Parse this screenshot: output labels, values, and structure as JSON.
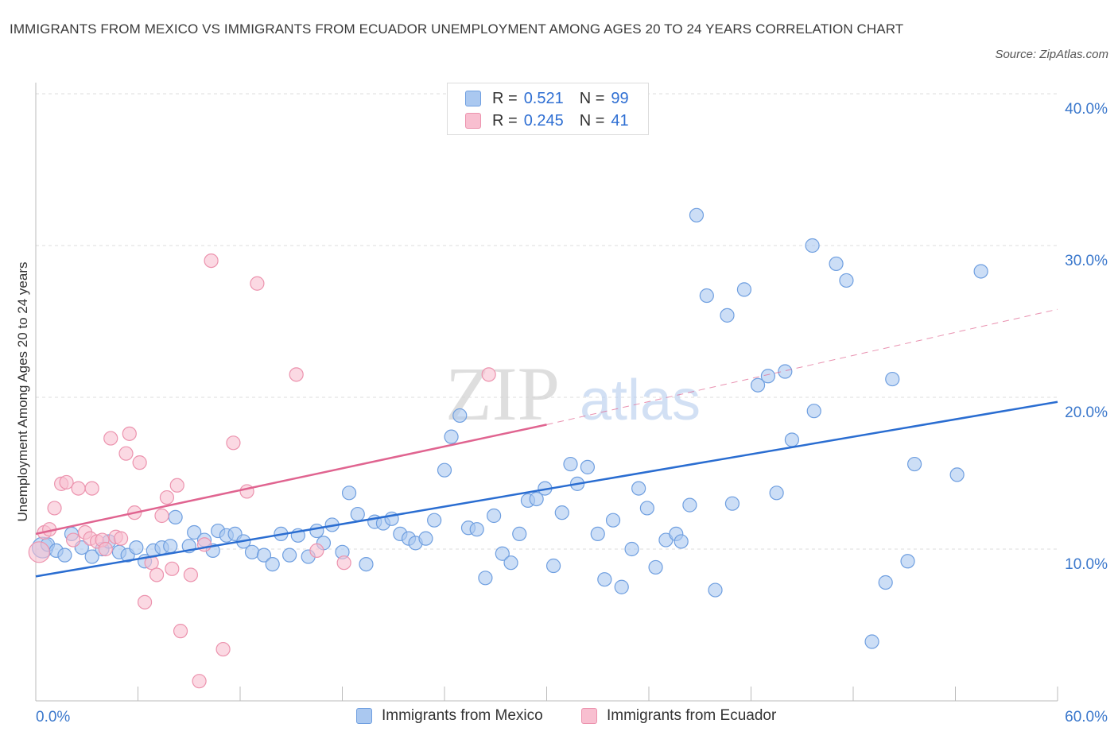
{
  "title": "IMMIGRANTS FROM MEXICO VS IMMIGRANTS FROM ECUADOR UNEMPLOYMENT AMONG AGES 20 TO 24 YEARS CORRELATION CHART",
  "source": "Source: ZipAtlas.com",
  "watermark": {
    "zip": "ZIP",
    "atlas": "atlas"
  },
  "legend": {
    "mexico": {
      "r_label": "R =",
      "r_value": "0.521",
      "n_label": "N =",
      "n_value": "99"
    },
    "ecuador": {
      "r_label": "R =",
      "r_value": "0.245",
      "n_label": "N =",
      "n_value": "41"
    }
  },
  "colors": {
    "mexico_fill": "#aac8f0",
    "mexico_stroke": "#6f9fe0",
    "mexico_line": "#2a6dd1",
    "ecuador_fill": "#f8bfd0",
    "ecuador_stroke": "#ec93ae",
    "ecuador_line": "#e06490",
    "axis_text": "#3b78cc",
    "grid": "#dddddd"
  },
  "chart_data": {
    "type": "scatter",
    "title": "IMMIGRANTS FROM MEXICO VS IMMIGRANTS FROM ECUADOR UNEMPLOYMENT AMONG AGES 20 TO 24 YEARS CORRELATION CHART",
    "xlabel": "",
    "ylabel": "Unemployment Among Ages 20 to 24 years",
    "xlim": [
      0,
      60
    ],
    "ylim": [
      0,
      40
    ],
    "x_tick_labels": [
      "0.0%",
      "60.0%"
    ],
    "y_ticks": [
      {
        "value": 10,
        "label": "10.0%"
      },
      {
        "value": 20,
        "label": "20.0%"
      },
      {
        "value": 30,
        "label": "30.0%"
      },
      {
        "value": 40,
        "label": "40.0%"
      }
    ],
    "grid": true,
    "legend_position": "top-center",
    "series": [
      {
        "name": "Immigrants from Mexico",
        "r": 0.521,
        "n": 99,
        "trend": {
          "x": [
            0,
            60
          ],
          "y": [
            8.2,
            19.7
          ]
        },
        "points": [
          [
            0.4,
            10.1
          ],
          [
            0.7,
            10.3
          ],
          [
            1.2,
            9.9
          ],
          [
            1.7,
            9.6
          ],
          [
            2.1,
            11.0
          ],
          [
            2.7,
            10.1
          ],
          [
            3.3,
            9.5
          ],
          [
            3.9,
            10.0
          ],
          [
            4.3,
            10.5
          ],
          [
            4.9,
            9.8
          ],
          [
            5.4,
            9.6
          ],
          [
            5.9,
            10.1
          ],
          [
            6.4,
            9.2
          ],
          [
            6.9,
            9.9
          ],
          [
            7.4,
            10.1
          ],
          [
            7.9,
            10.2
          ],
          [
            8.2,
            12.1
          ],
          [
            9.0,
            10.2
          ],
          [
            9.3,
            11.1
          ],
          [
            9.9,
            10.6
          ],
          [
            10.4,
            9.9
          ],
          [
            10.7,
            11.2
          ],
          [
            11.2,
            10.9
          ],
          [
            11.7,
            11.0
          ],
          [
            12.2,
            10.5
          ],
          [
            12.7,
            9.8
          ],
          [
            13.4,
            9.6
          ],
          [
            13.9,
            9.0
          ],
          [
            14.4,
            11.0
          ],
          [
            14.9,
            9.6
          ],
          [
            15.4,
            10.9
          ],
          [
            16.0,
            9.5
          ],
          [
            16.5,
            11.2
          ],
          [
            16.9,
            10.4
          ],
          [
            17.4,
            11.6
          ],
          [
            18.0,
            9.8
          ],
          [
            18.4,
            13.7
          ],
          [
            18.9,
            12.3
          ],
          [
            19.4,
            9.0
          ],
          [
            19.9,
            11.8
          ],
          [
            20.4,
            11.7
          ],
          [
            20.9,
            12.0
          ],
          [
            21.4,
            11.0
          ],
          [
            21.9,
            10.7
          ],
          [
            22.3,
            10.4
          ],
          [
            22.9,
            10.7
          ],
          [
            23.4,
            11.9
          ],
          [
            24.0,
            15.2
          ],
          [
            24.4,
            17.4
          ],
          [
            24.9,
            18.8
          ],
          [
            25.4,
            11.4
          ],
          [
            25.9,
            11.3
          ],
          [
            26.4,
            8.1
          ],
          [
            26.9,
            12.2
          ],
          [
            27.4,
            9.7
          ],
          [
            27.9,
            9.1
          ],
          [
            28.4,
            11.0
          ],
          [
            28.9,
            13.2
          ],
          [
            29.4,
            13.3
          ],
          [
            29.9,
            14.0
          ],
          [
            30.4,
            8.9
          ],
          [
            30.9,
            12.4
          ],
          [
            31.4,
            15.6
          ],
          [
            31.8,
            14.3
          ],
          [
            32.4,
            15.4
          ],
          [
            33.0,
            11.0
          ],
          [
            33.4,
            8.0
          ],
          [
            33.9,
            11.9
          ],
          [
            34.4,
            7.5
          ],
          [
            35.0,
            10.0
          ],
          [
            35.4,
            14.0
          ],
          [
            35.9,
            12.7
          ],
          [
            36.4,
            8.8
          ],
          [
            37.0,
            10.6
          ],
          [
            37.6,
            11.0
          ],
          [
            37.9,
            10.5
          ],
          [
            38.4,
            12.9
          ],
          [
            38.8,
            32.0
          ],
          [
            39.4,
            26.7
          ],
          [
            39.9,
            7.3
          ],
          [
            40.6,
            25.4
          ],
          [
            40.9,
            13.0
          ],
          [
            41.6,
            27.1
          ],
          [
            42.4,
            20.8
          ],
          [
            43.0,
            21.4
          ],
          [
            43.5,
            13.7
          ],
          [
            44.0,
            21.7
          ],
          [
            44.4,
            17.2
          ],
          [
            45.6,
            30.0
          ],
          [
            45.7,
            19.1
          ],
          [
            47.0,
            28.8
          ],
          [
            47.6,
            27.7
          ],
          [
            49.1,
            3.9
          ],
          [
            49.9,
            7.8
          ],
          [
            50.3,
            21.2
          ],
          [
            51.2,
            9.2
          ],
          [
            51.6,
            15.6
          ],
          [
            54.1,
            14.9
          ],
          [
            55.5,
            28.3
          ]
        ]
      },
      {
        "name": "Immigrants from Ecuador",
        "r": 0.245,
        "n": 41,
        "trend": {
          "x": [
            0,
            30
          ],
          "y": [
            11.0,
            18.2
          ]
        },
        "trend_extension": {
          "x": [
            30,
            60
          ],
          "y": [
            18.2,
            25.8
          ]
        },
        "points": [
          [
            0.2,
            9.8
          ],
          [
            0.5,
            11.1
          ],
          [
            0.8,
            11.3
          ],
          [
            1.1,
            12.7
          ],
          [
            1.5,
            14.3
          ],
          [
            1.8,
            14.4
          ],
          [
            2.2,
            10.6
          ],
          [
            2.5,
            14.0
          ],
          [
            2.9,
            11.1
          ],
          [
            3.2,
            10.7
          ],
          [
            3.3,
            14.0
          ],
          [
            3.6,
            10.5
          ],
          [
            3.9,
            10.6
          ],
          [
            4.1,
            10.0
          ],
          [
            4.4,
            17.3
          ],
          [
            4.7,
            10.8
          ],
          [
            5.0,
            10.7
          ],
          [
            5.3,
            16.3
          ],
          [
            5.5,
            17.6
          ],
          [
            5.8,
            12.4
          ],
          [
            6.1,
            15.7
          ],
          [
            6.4,
            6.5
          ],
          [
            6.8,
            9.1
          ],
          [
            7.1,
            8.3
          ],
          [
            7.4,
            12.2
          ],
          [
            7.7,
            13.4
          ],
          [
            8.0,
            8.7
          ],
          [
            8.3,
            14.2
          ],
          [
            8.5,
            4.6
          ],
          [
            9.1,
            8.3
          ],
          [
            9.6,
            1.3
          ],
          [
            9.9,
            10.3
          ],
          [
            10.3,
            29.0
          ],
          [
            11.0,
            3.4
          ],
          [
            11.6,
            17.0
          ],
          [
            12.4,
            13.8
          ],
          [
            13.0,
            27.5
          ],
          [
            15.3,
            21.5
          ],
          [
            16.5,
            9.9
          ],
          [
            18.1,
            9.1
          ],
          [
            26.6,
            21.5
          ]
        ]
      }
    ]
  },
  "bottom_legend": {
    "mexico": "Immigrants from Mexico",
    "ecuador": "Immigrants from Ecuador"
  }
}
